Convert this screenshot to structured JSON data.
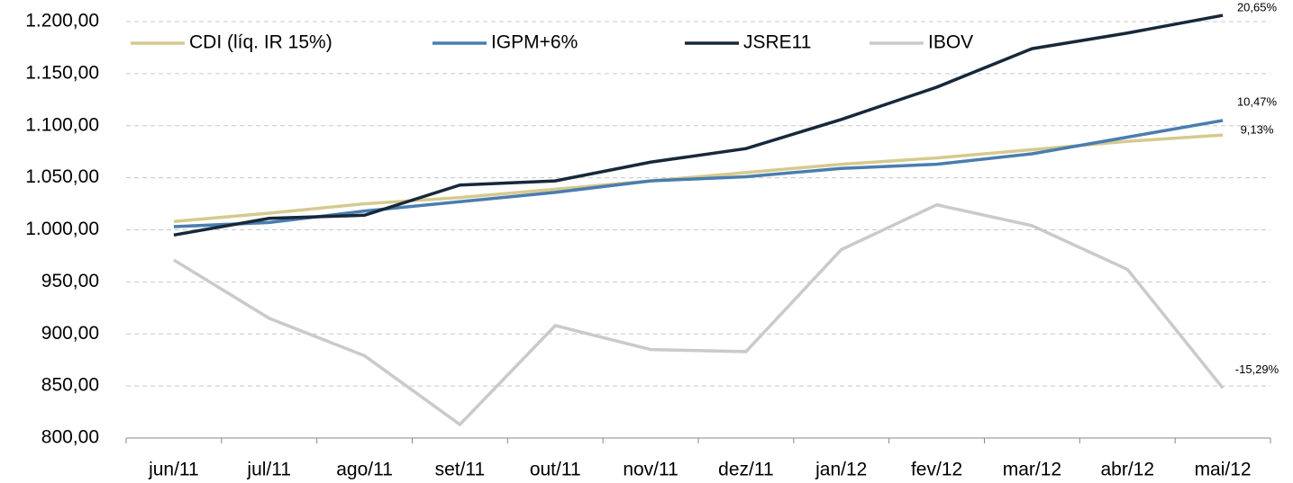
{
  "chart_data": {
    "type": "line",
    "categories": [
      "jun/11",
      "jul/11",
      "ago/11",
      "set/11",
      "out/11",
      "nov/11",
      "dez/11",
      "jan/12",
      "fev/12",
      "mar/12",
      "abr/12",
      "mai/12"
    ],
    "series": [
      {
        "name": "CDI (líq. IR 15%)",
        "color": "#d5ca8f",
        "values": [
          1008,
          1016,
          1025,
          1031,
          1039,
          1047,
          1055,
          1063,
          1069,
          1077,
          1085,
          1091
        ],
        "end_label": "9,13%"
      },
      {
        "name": "IGPM+6%",
        "color": "#4a7db0",
        "values": [
          1003,
          1007,
          1018,
          1027,
          1036,
          1047,
          1051,
          1059,
          1063,
          1073,
          1089,
          1105
        ],
        "end_label": "10,47%"
      },
      {
        "name": "JSRE11",
        "color": "#17283a",
        "values": [
          995,
          1011,
          1014,
          1043,
          1047,
          1065,
          1078,
          1106,
          1137,
          1174,
          1189,
          1206
        ],
        "end_label": "20,65%"
      },
      {
        "name": "IBOV",
        "color": "#c8cace",
        "values": [
          971,
          915,
          879,
          813,
          908,
          885,
          883,
          981,
          1024,
          1004,
          962,
          848
        ],
        "end_label": "-15,29%"
      }
    ],
    "ylim": [
      800,
      1200
    ],
    "yticks": [
      {
        "value": 800,
        "label": "800,00"
      },
      {
        "value": 850,
        "label": "850,00"
      },
      {
        "value": 900,
        "label": "900,00"
      },
      {
        "value": 950,
        "label": "950,00"
      },
      {
        "value": 1000,
        "label": "1.000,00"
      },
      {
        "value": 1050,
        "label": "1.050,00"
      },
      {
        "value": 1100,
        "label": "1.100,00"
      },
      {
        "value": 1150,
        "label": "1.150,00"
      },
      {
        "value": 1200,
        "label": "1.200,00"
      }
    ],
    "grid": true,
    "legend": "top"
  }
}
